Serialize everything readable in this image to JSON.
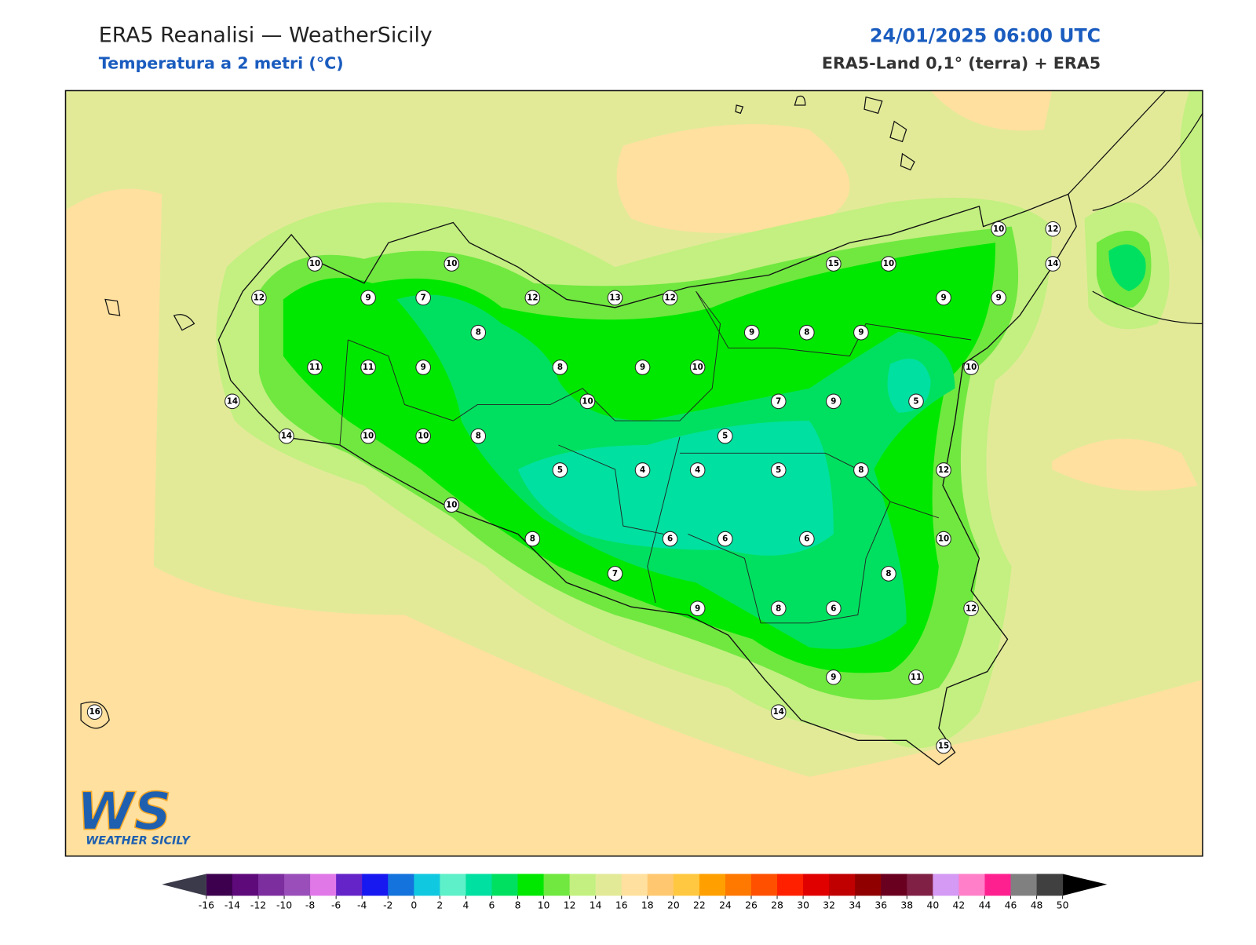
{
  "header": {
    "title": "ERA5 Reanalisi — WeatherSicily",
    "subtitle": "Temperatura a 2 metri (°C)",
    "datetime": "24/01/2025 06:00 UTC",
    "source": "ERA5-Land 0,1° (terra) + ERA5"
  },
  "stations": [
    10,
    10,
    12,
    9,
    7,
    12,
    13,
    12,
    8,
    11,
    11,
    9,
    8,
    9,
    10,
    10,
    14,
    14,
    10,
    10,
    8,
    5,
    4,
    4,
    5,
    5,
    7,
    9,
    5,
    8,
    12,
    10,
    8,
    6,
    6,
    6,
    10,
    7,
    8,
    9,
    8,
    6,
    12,
    9,
    11,
    14,
    15,
    16,
    15,
    10,
    10,
    12,
    14,
    9,
    9,
    9,
    8,
    9,
    10
  ],
  "colorbar": {
    "ticks": [
      -16,
      -14,
      -12,
      -10,
      -8,
      -6,
      -4,
      -2,
      0,
      2,
      4,
      6,
      8,
      10,
      12,
      14,
      16,
      18,
      20,
      22,
      24,
      26,
      28,
      30,
      32,
      34,
      36,
      38,
      40,
      42,
      44,
      46,
      48,
      50
    ],
    "colors": [
      "#3c004f",
      "#5e0a7a",
      "#7c2d9e",
      "#9a4eb9",
      "#e078e8",
      "#6424c8",
      "#1818f0",
      "#1473dc",
      "#10c8e0",
      "#5ef0c8",
      "#00e0a0",
      "#00e060",
      "#00e800",
      "#70e840",
      "#c3f080",
      "#e2ea98",
      "#ffe09e",
      "#ffc870",
      "#ffc840",
      "#ffa000",
      "#ff7800",
      "#ff5000",
      "#ff2000",
      "#e00000",
      "#c00000",
      "#900000",
      "#6a0020",
      "#802045",
      "#d49af4",
      "#ff80c8",
      "#ff2090",
      "#808080",
      "#404040"
    ]
  },
  "logo": {
    "text": "WS",
    "caption": "WEATHER SICILY"
  }
}
